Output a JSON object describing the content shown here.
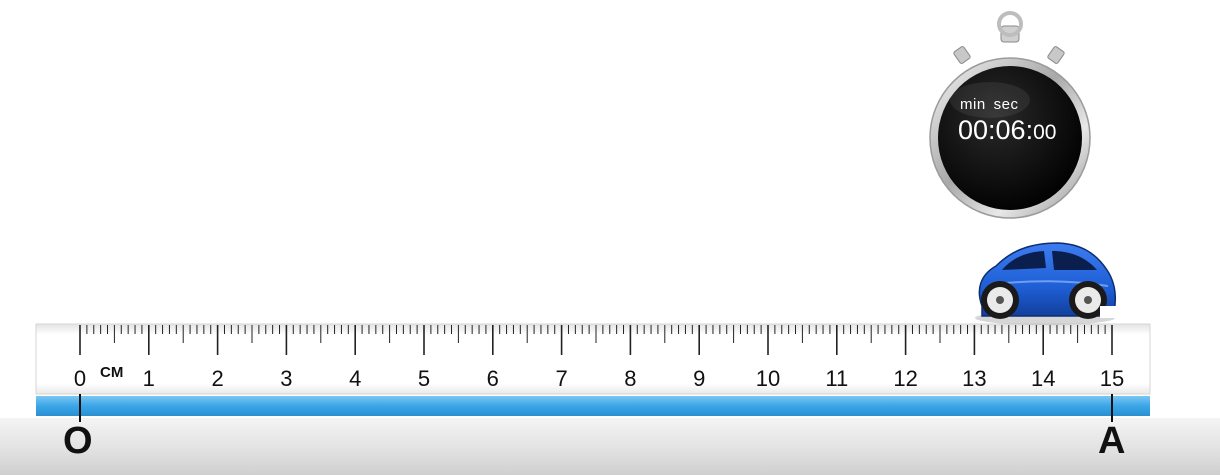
{
  "ruler": {
    "unit_label": "CM",
    "numbers": [
      "0",
      "1",
      "2",
      "3",
      "4",
      "5",
      "6",
      "7",
      "8",
      "9",
      "10",
      "11",
      "12",
      "13",
      "14",
      "15"
    ],
    "start_cm": 0,
    "end_cm": 15,
    "minor_ticks_per_cm": 10
  },
  "stopwatch": {
    "min_label": "min",
    "sec_label": "sec",
    "time_main": "00:06:",
    "time_small": "00"
  },
  "points": {
    "start_label": "O",
    "end_label": "A"
  },
  "car": {
    "position_cm": 15,
    "body_color": "#1f5fd6"
  },
  "colors": {
    "track": "#3aa6e8",
    "ruler_face": "#ffffff",
    "ruler_edge": "#d6d6d6",
    "bezel": "#c9c9c9",
    "dial": "#050505"
  }
}
